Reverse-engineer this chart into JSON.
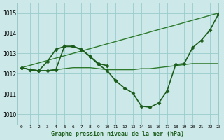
{
  "title": "Graphe pression niveau de la mer (hPa)",
  "background_color": "#cce8e8",
  "grid_color": "#99cccc",
  "line_color_dark": "#1a5c1a",
  "line_color_mid": "#2d7a2d",
  "xlim": [
    -0.5,
    23
  ],
  "ylim": [
    1009.5,
    1015.5
  ],
  "yticks": [
    1010,
    1011,
    1012,
    1013,
    1014,
    1015
  ],
  "xtick_labels": [
    "0",
    "1",
    "2",
    "3",
    "4",
    "5",
    "6",
    "7",
    "8",
    "9",
    "10",
    "11",
    "12",
    "13",
    "14",
    "15",
    "16",
    "17",
    "18",
    "19",
    "20",
    "21",
    "22",
    "23"
  ],
  "series": [
    {
      "x": [
        0,
        1,
        2,
        3,
        4,
        5,
        6,
        7,
        8,
        9,
        10,
        11,
        12,
        13,
        14,
        15,
        16,
        17,
        18,
        19,
        20,
        21,
        22,
        23
      ],
      "y": [
        1012.3,
        1012.2,
        1012.15,
        1012.15,
        1012.2,
        1012.25,
        1012.3,
        1012.3,
        1012.3,
        1012.25,
        1012.2,
        1012.2,
        1012.2,
        1012.2,
        1012.25,
        1012.25,
        1012.3,
        1012.35,
        1012.4,
        1012.45,
        1012.5,
        1012.5,
        1012.5,
        1012.5
      ],
      "marker": null,
      "linewidth": 1.0,
      "dark": false
    },
    {
      "x": [
        0,
        23
      ],
      "y": [
        1012.3,
        1015.0
      ],
      "marker": null,
      "linewidth": 1.0,
      "dark": false
    },
    {
      "x": [
        0,
        1,
        2,
        3,
        4,
        5,
        6,
        7,
        8,
        9,
        10
      ],
      "y": [
        1012.3,
        1012.2,
        1012.15,
        1012.6,
        1013.2,
        1013.35,
        1013.35,
        1013.2,
        1012.85,
        1012.5,
        1012.4
      ],
      "marker": "D",
      "markersize": 2.5,
      "linewidth": 1.2,
      "dark": true
    },
    {
      "x": [
        0,
        1,
        2,
        3,
        4,
        5,
        6,
        7,
        8,
        9,
        10,
        11,
        12,
        13,
        14,
        15,
        16,
        17,
        18,
        19,
        20,
        21,
        22,
        23
      ],
      "y": [
        1012.3,
        1012.2,
        1012.15,
        1012.15,
        1012.2,
        1013.35,
        1013.35,
        1013.2,
        1012.85,
        1012.45,
        1012.15,
        1011.65,
        1011.3,
        1011.05,
        1010.4,
        1010.35,
        1010.55,
        1011.15,
        1012.45,
        1012.5,
        1013.3,
        1013.65,
        1014.15,
        1014.95
      ],
      "marker": "D",
      "markersize": 2.5,
      "linewidth": 1.2,
      "dark": true
    }
  ]
}
